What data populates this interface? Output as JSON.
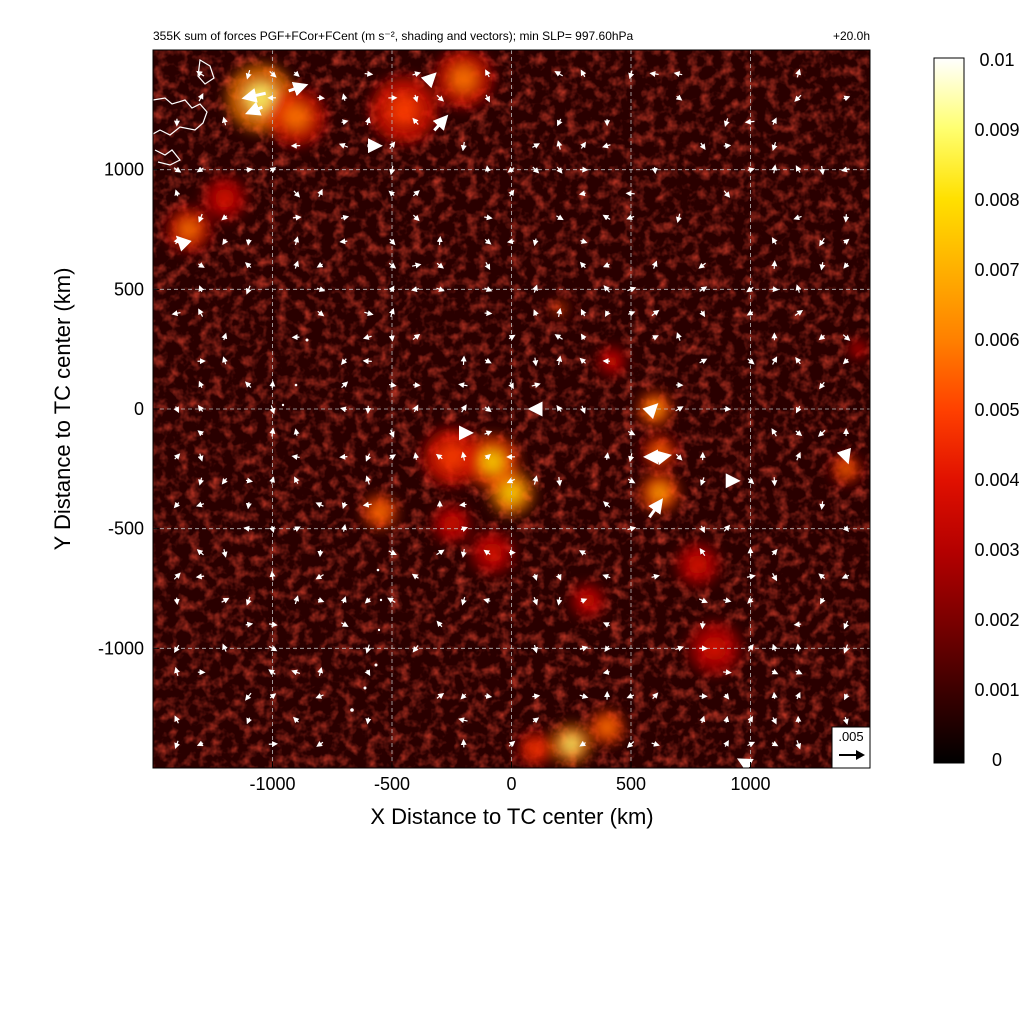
{
  "chart_data": {
    "type": "heatmap",
    "title": "355K sum of forces PGF+FCor+FCent (m s⁻², shading and vectors); min SLP= 997.60hPa",
    "time_label": "+20.0h",
    "xlabel": "X Distance to TC center (km)",
    "ylabel": "Y Distance to TC center (km)",
    "xlim": [
      -1500,
      1500
    ],
    "ylim": [
      -1500,
      1500
    ],
    "x_ticks": [
      -1000,
      -500,
      0,
      500,
      1000
    ],
    "x_tick_labels": [
      "-1000",
      "-500",
      "0",
      "500",
      "1000"
    ],
    "y_ticks": [
      1000,
      500,
      0,
      -500,
      -1000
    ],
    "y_tick_labels": [
      "1000",
      "500",
      "0",
      "-500",
      "-1000"
    ],
    "grid": true,
    "colorbar": {
      "range": [
        0,
        0.01
      ],
      "ticks": [
        0.01,
        0.009,
        0.008,
        0.007,
        0.006,
        0.005,
        0.004,
        0.003,
        0.002,
        0.001,
        0
      ],
      "tick_labels": [
        "0.01",
        "0.009",
        "0.008",
        "0.007",
        "0.006",
        "0.005",
        "0.004",
        "0.003",
        "0.002",
        "0.001",
        "0"
      ],
      "colors": [
        "#000000",
        "#3a0000",
        "#7a0000",
        "#b40000",
        "#e01000",
        "#ff4000",
        "#ff8000",
        "#ffb000",
        "#ffe000",
        "#ffff70",
        "#ffffff"
      ]
    },
    "reference_vector": {
      "label": ".005",
      "magnitude": 0.005
    },
    "hotspots": [
      {
        "x": -1050,
        "y": 1300,
        "v": 0.0065,
        "r": 140
      },
      {
        "x": -900,
        "y": 1220,
        "v": 0.004,
        "r": 120
      },
      {
        "x": -450,
        "y": 1250,
        "v": 0.0035,
        "r": 140
      },
      {
        "x": -200,
        "y": 1380,
        "v": 0.004,
        "r": 120
      },
      {
        "x": -1350,
        "y": 750,
        "v": 0.004,
        "r": 90
      },
      {
        "x": -1200,
        "y": 880,
        "v": 0.0025,
        "r": 90
      },
      {
        "x": -80,
        "y": -220,
        "v": 0.0055,
        "r": 110
      },
      {
        "x": 0,
        "y": -350,
        "v": 0.006,
        "r": 90
      },
      {
        "x": -250,
        "y": -200,
        "v": 0.0035,
        "r": 120
      },
      {
        "x": -550,
        "y": -430,
        "v": 0.0045,
        "r": 70
      },
      {
        "x": -250,
        "y": -480,
        "v": 0.003,
        "r": 80
      },
      {
        "x": -80,
        "y": -600,
        "v": 0.003,
        "r": 90
      },
      {
        "x": 600,
        "y": 0,
        "v": 0.005,
        "r": 70
      },
      {
        "x": 620,
        "y": -350,
        "v": 0.005,
        "r": 80
      },
      {
        "x": 620,
        "y": -180,
        "v": 0.004,
        "r": 70
      },
      {
        "x": 420,
        "y": 200,
        "v": 0.003,
        "r": 60
      },
      {
        "x": 250,
        "y": -1400,
        "v": 0.0065,
        "r": 80
      },
      {
        "x": 400,
        "y": -1330,
        "v": 0.0045,
        "r": 70
      },
      {
        "x": 100,
        "y": -1420,
        "v": 0.0035,
        "r": 70
      },
      {
        "x": 780,
        "y": -650,
        "v": 0.003,
        "r": 90
      },
      {
        "x": 850,
        "y": -1000,
        "v": 0.0025,
        "r": 110
      },
      {
        "x": 1400,
        "y": -250,
        "v": 0.004,
        "r": 60
      },
      {
        "x": 1450,
        "y": 250,
        "v": 0.003,
        "r": 40
      },
      {
        "x": 320,
        "y": -800,
        "v": 0.003,
        "r": 70
      },
      {
        "x": 200,
        "y": 420,
        "v": 0.004,
        "r": 30
      }
    ],
    "large_vectors": [
      {
        "x": -1070,
        "y": 1310,
        "u": -0.0045,
        "v": -0.001
      },
      {
        "x": -900,
        "y": 1340,
        "u": 0.0035,
        "v": 0.0012
      },
      {
        "x": -1070,
        "y": 1250,
        "u": -0.003,
        "v": -0.0012
      },
      {
        "x": -340,
        "y": 1380,
        "u": 0.0015,
        "v": 0.0015
      },
      {
        "x": -300,
        "y": 1190,
        "u": 0.0025,
        "v": 0.0028
      },
      {
        "x": -580,
        "y": 1100,
        "u": 0.0025,
        "v": 0
      },
      {
        "x": -1380,
        "y": 700,
        "u": -0.0012,
        "v": 0.0012
      },
      {
        "x": 630,
        "y": -200,
        "u": 0.0025,
        "v": 0.0005
      },
      {
        "x": 600,
        "y": -420,
        "u": 0.0025,
        "v": 0.0035
      },
      {
        "x": 590,
        "y": 0,
        "u": 0.0012,
        "v": 0.0012
      },
      {
        "x": 920,
        "y": -300,
        "u": 0.0022,
        "v": 0
      },
      {
        "x": 1400,
        "y": -200,
        "u": 0.0005,
        "v": -0.0015
      },
      {
        "x": 980,
        "y": -1480,
        "u": -0.0022,
        "v": 0.0012
      },
      {
        "x": -190,
        "y": -100,
        "u": 0.0015,
        "v": 0
      },
      {
        "x": 100,
        "y": 0,
        "u": -0.0015,
        "v": 0
      },
      {
        "x": 580,
        "y": -200,
        "u": -0.0012,
        "v": 0
      }
    ]
  }
}
